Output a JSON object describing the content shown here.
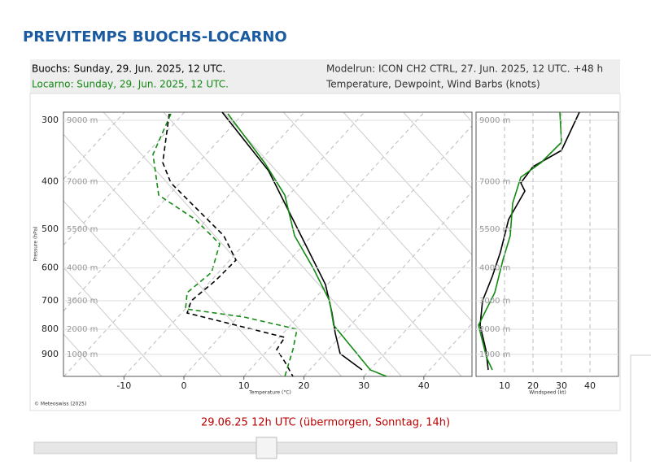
{
  "header": {
    "title": "PREVITEMPS BUOCHS-LOCARNO"
  },
  "info": {
    "buochs": "Buochs: Sunday, 29. Jun. 2025, 12 UTC.",
    "locarno": "Locarno: Sunday, 29. Jun. 2025, 12 UTC.",
    "modelrun": "Modelrun: ICON CH2 CTRL, 27. Jun. 2025, 12 UTC. +48 h",
    "content": "Temperature, Dewpoint, Wind Barbs (knots)"
  },
  "diagram": {
    "levels": [
      {
        "pressure": 300,
        "height": "9000 m"
      },
      {
        "pressure": 400,
        "height": "7000 m"
      },
      {
        "pressure": 500,
        "height": "5500 m"
      },
      {
        "pressure": 600,
        "height": "4000 m"
      },
      {
        "pressure": 700,
        "height": "3000 m"
      },
      {
        "pressure": 800,
        "height": "2000 m"
      },
      {
        "pressure": 900,
        "height": "1000 m"
      }
    ],
    "temperature_ticks": [
      -10,
      0,
      10,
      20,
      30,
      40
    ],
    "windspeed_ticks": [
      10,
      20,
      30,
      40
    ],
    "pressure_label": "Pressure (hPa)",
    "temperature_label": "Temperature (°C)",
    "windspeed_label": "Windspeed (kt)",
    "copyright": "© Meteoswiss (2025)"
  },
  "timestamp": "29.06.25 12h UTC (übermorgen, Sonntag, 14h)"
}
